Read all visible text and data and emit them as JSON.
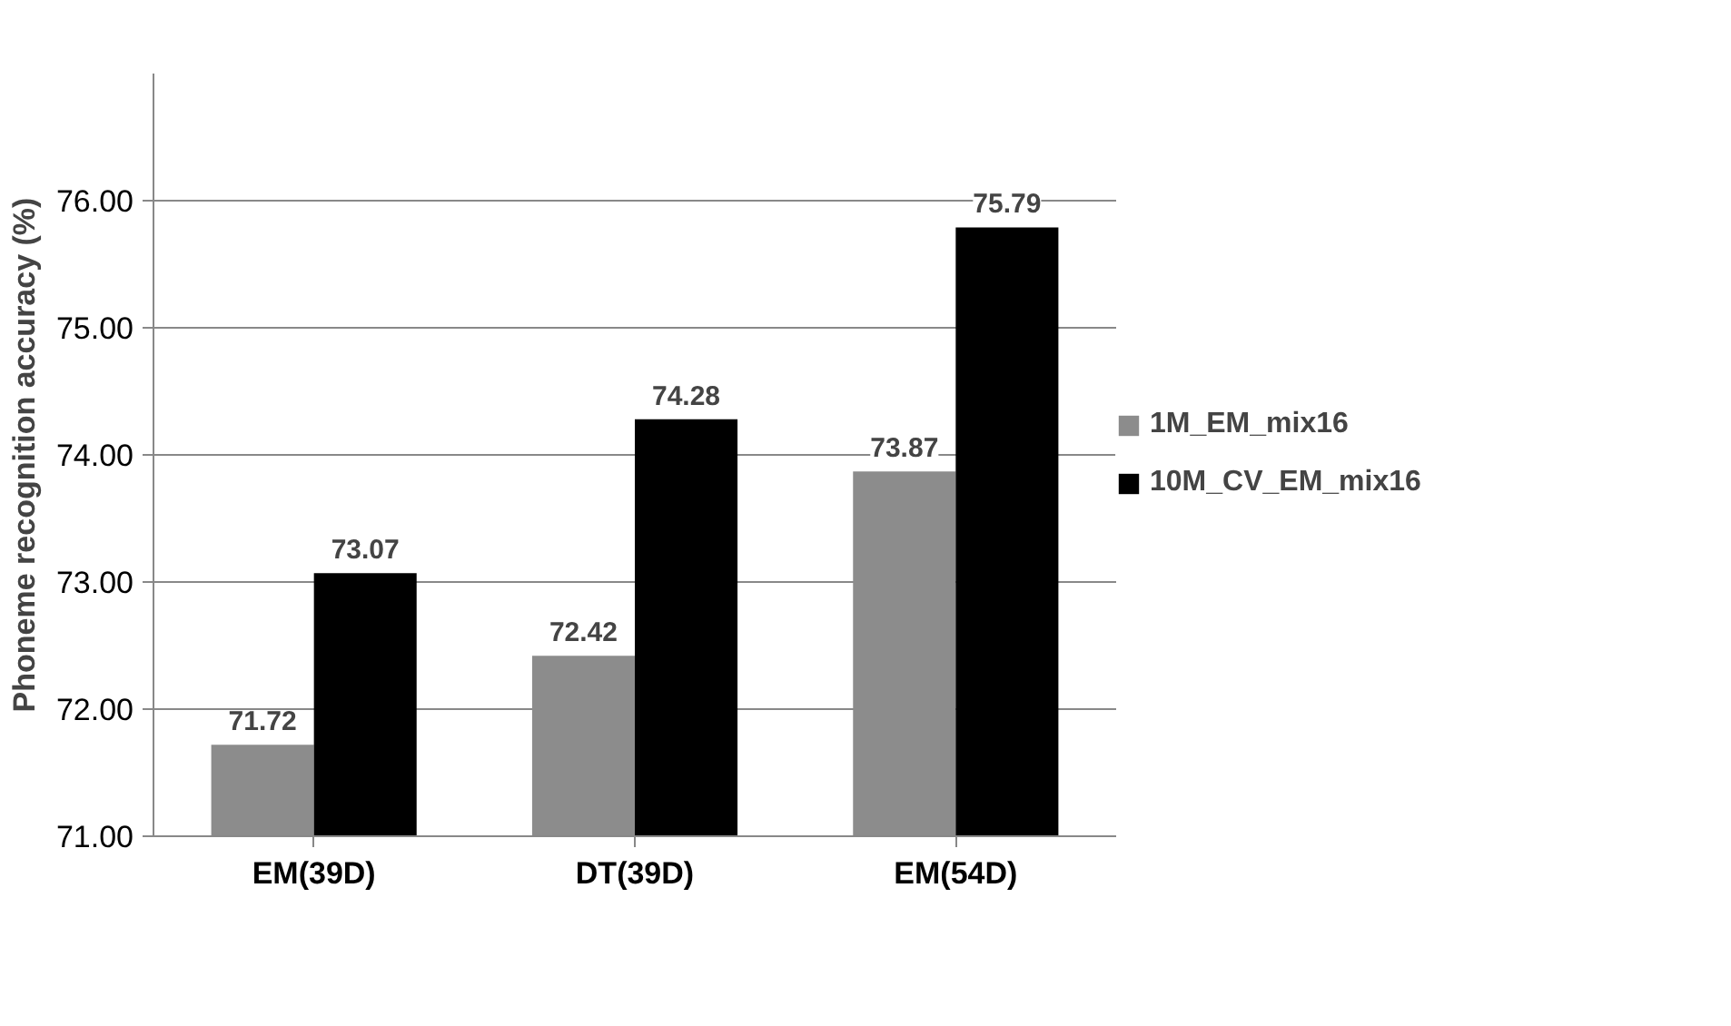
{
  "chart_data": {
    "type": "bar",
    "ylabel": "Phoneme recognition accuracy (%)",
    "categories": [
      "EM(39D)",
      "DT(39D)",
      "EM(54D)"
    ],
    "series": [
      {
        "name": "1M_EM_mix16",
        "color": "#8c8c8c",
        "values": [
          71.72,
          72.42,
          73.87
        ]
      },
      {
        "name": "10M_CV_EM_mix16",
        "color": "#000000",
        "values": [
          73.07,
          74.28,
          75.79
        ]
      }
    ],
    "ylim": [
      71,
      77
    ],
    "yticks": [
      {
        "value": 71,
        "label": "71.00"
      },
      {
        "value": 72,
        "label": "72.00"
      },
      {
        "value": 73,
        "label": "73.00"
      },
      {
        "value": 74,
        "label": "74.00"
      },
      {
        "value": 75,
        "label": "75.00"
      },
      {
        "value": 76,
        "label": "76.00"
      }
    ],
    "data_labels": true,
    "grid": "y",
    "legend": "right"
  }
}
